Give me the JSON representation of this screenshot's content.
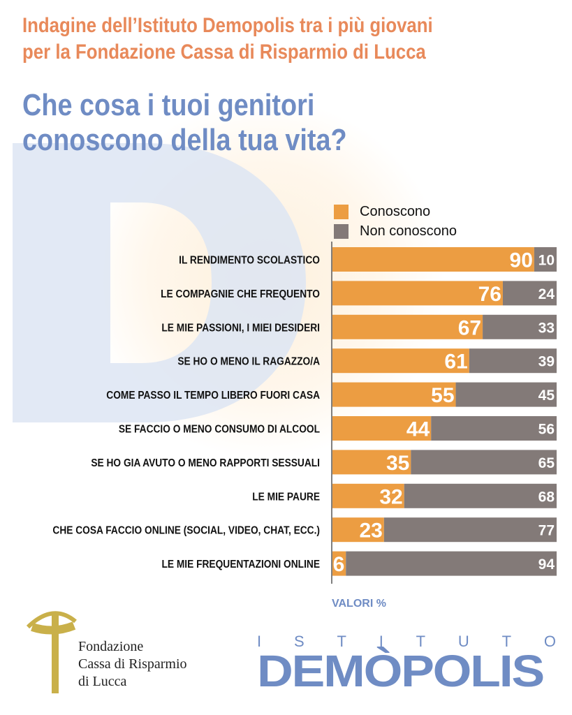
{
  "header": {
    "line1": "Indagine dell’Istituto Demopolis tra i più giovani",
    "line2": "per la Fondazione Cassa di Risparmio di Lucca"
  },
  "title": {
    "line1": "Che cosa i tuoi genitori",
    "line2": "conoscono della tua vita?"
  },
  "background_letter": "D",
  "colors": {
    "conoscono": "#ec9d42",
    "non_conoscono": "#837a78",
    "header": "#e8895a",
    "title": "#6f8cc4"
  },
  "chart_data": {
    "type": "bar",
    "orientation": "horizontal-stacked-100",
    "categories": [
      "IL RENDIMENTO SCOLASTICO",
      "LE COMPAGNIE CHE FREQUENTO",
      "LE MIE PASSIONI, I MIEI DESIDERI",
      "SE HO O MENO IL RAGAZZO/A",
      "COME PASSO IL TEMPO LIBERO FUORI CASA",
      "SE FACCIO O MENO CONSUMO DI ALCOOL",
      "SE HO GIA AVUTO O MENO RAPPORTI SESSUALI",
      "LE MIE PAURE",
      "CHE COSA FACCIO ONLINE (SOCIAL, VIDEO, CHAT, ECC.)",
      "LE MIE FREQUENTAZIONI ONLINE"
    ],
    "series": [
      {
        "name": "Conoscono",
        "values": [
          90,
          76,
          67,
          61,
          55,
          44,
          35,
          32,
          23,
          6
        ]
      },
      {
        "name": "Non conoscono",
        "values": [
          10,
          24,
          33,
          39,
          45,
          56,
          65,
          68,
          77,
          94
        ]
      }
    ],
    "xlim": [
      0,
      100
    ],
    "legend": "top-right",
    "grid": false,
    "unit_note": "VALORI %"
  },
  "logos": {
    "fondazione": {
      "line1": "Fondazione",
      "line2": "Cassa di Risparmio",
      "line3": "di Lucca"
    },
    "demopolis": {
      "small": [
        "I",
        "S",
        "T",
        "I",
        "T",
        "U",
        "T",
        "O"
      ],
      "big": "DEMÒPOLIS"
    }
  }
}
